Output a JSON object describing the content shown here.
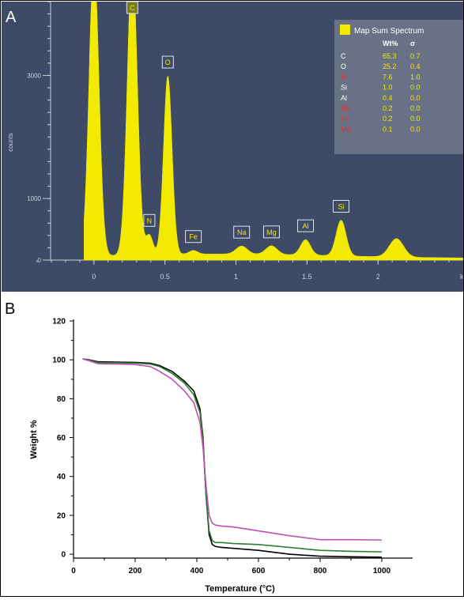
{
  "chart_data": [
    {
      "panel_label": "A",
      "type": "area",
      "ylabel": "counts",
      "xlabel": "keV",
      "xlim": [
        -0.45,
        2.6
      ],
      "ylim": [
        0,
        4200
      ],
      "x_ticks": [
        "0",
        "0.5",
        "1",
        "1.5",
        "2"
      ],
      "y_ticks": [
        "0",
        "1000",
        "3000"
      ],
      "fill_color": "#f2ea00",
      "background_color": "#3e4a66",
      "peaks": [
        {
          "x": 0.0,
          "y": 4800
        },
        {
          "x": 0.27,
          "y": 4800
        },
        {
          "x": 0.39,
          "y": 320
        },
        {
          "x": 0.52,
          "y": 2900
        },
        {
          "x": 0.7,
          "y": 60
        },
        {
          "x": 1.04,
          "y": 130
        },
        {
          "x": 1.25,
          "y": 140
        },
        {
          "x": 1.49,
          "y": 250
        },
        {
          "x": 1.74,
          "y": 580
        },
        {
          "x": 2.13,
          "y": 300
        }
      ],
      "peak_labels": [
        {
          "label": "C",
          "x": 0.27
        },
        {
          "label": "N",
          "x": 0.39
        },
        {
          "label": "O",
          "x": 0.52
        },
        {
          "label": "Fe",
          "x": 0.7
        },
        {
          "label": "Na",
          "x": 1.04
        },
        {
          "label": "Mg",
          "x": 1.25
        },
        {
          "label": "Al",
          "x": 1.49
        },
        {
          "label": "Si",
          "x": 1.74
        }
      ],
      "legend": {
        "title": "Map Sum Spectrum",
        "col_wt": "Wt%",
        "col_sigma": "σ",
        "rows": [
          {
            "el": "C",
            "wt": "65.3",
            "sigma": "0.7",
            "color": "#ffffff"
          },
          {
            "el": "O",
            "wt": "25.2",
            "sigma": "0.4",
            "color": "#ffffff"
          },
          {
            "el": "N",
            "wt": "7.6",
            "sigma": "1.0",
            "color": "#e53030"
          },
          {
            "el": "Si",
            "wt": "1.0",
            "sigma": "0.0",
            "color": "#ffffff"
          },
          {
            "el": "Al",
            "wt": "0.4",
            "sigma": "0.0",
            "color": "#ffffff"
          },
          {
            "el": "Na",
            "wt": "0.2",
            "sigma": "0.0",
            "color": "#e53030"
          },
          {
            "el": "Fe",
            "wt": "0.2",
            "sigma": "0.0",
            "color": "#e53030"
          },
          {
            "el": "Mg",
            "wt": "0.1",
            "sigma": "0.0",
            "color": "#e53030"
          }
        ]
      }
    },
    {
      "panel_label": "B",
      "type": "line",
      "xlabel": "Temperature (°C)",
      "ylabel": "Weight %",
      "xlim": [
        0,
        1100
      ],
      "ylim": [
        -2,
        120
      ],
      "x_ticks": [
        0,
        200,
        400,
        600,
        800,
        1000
      ],
      "y_ticks": [
        0,
        20,
        40,
        60,
        80,
        100,
        120
      ],
      "series": [
        {
          "color": "#000000",
          "x": [
            30,
            50,
            80,
            150,
            200,
            250,
            280,
            320,
            360,
            390,
            410,
            420,
            430,
            440,
            450,
            460,
            480,
            520,
            600,
            700,
            800,
            900,
            1000
          ],
          "y": [
            100.5,
            100,
            99,
            98.8,
            98.7,
            98.2,
            97,
            94,
            89,
            84,
            75,
            60,
            30,
            10,
            5,
            4,
            3.5,
            3,
            2,
            0,
            -1,
            -1.3,
            -1.5
          ]
        },
        {
          "color": "#2e7d32",
          "x": [
            30,
            50,
            80,
            150,
            200,
            250,
            280,
            320,
            360,
            390,
            410,
            420,
            430,
            440,
            450,
            460,
            480,
            520,
            600,
            700,
            800,
            900,
            1000
          ],
          "y": [
            100.5,
            99.8,
            98.6,
            98.4,
            98.3,
            97.8,
            96.5,
            93,
            88,
            82,
            73,
            58,
            30,
            12,
            7,
            6,
            6,
            5.5,
            5,
            3.5,
            2,
            1.5,
            1.2
          ]
        },
        {
          "color": "#c04fb3",
          "x": [
            30,
            50,
            80,
            150,
            200,
            250,
            280,
            320,
            360,
            390,
            410,
            420,
            430,
            440,
            450,
            460,
            480,
            520,
            600,
            700,
            800,
            900,
            1000
          ],
          "y": [
            100.5,
            99.5,
            98,
            97.8,
            97.6,
            96.5,
            94,
            90,
            84,
            78,
            68,
            55,
            35,
            20,
            16,
            15,
            14.5,
            14,
            12,
            9.5,
            7.5,
            7.5,
            7.3
          ]
        }
      ]
    }
  ]
}
